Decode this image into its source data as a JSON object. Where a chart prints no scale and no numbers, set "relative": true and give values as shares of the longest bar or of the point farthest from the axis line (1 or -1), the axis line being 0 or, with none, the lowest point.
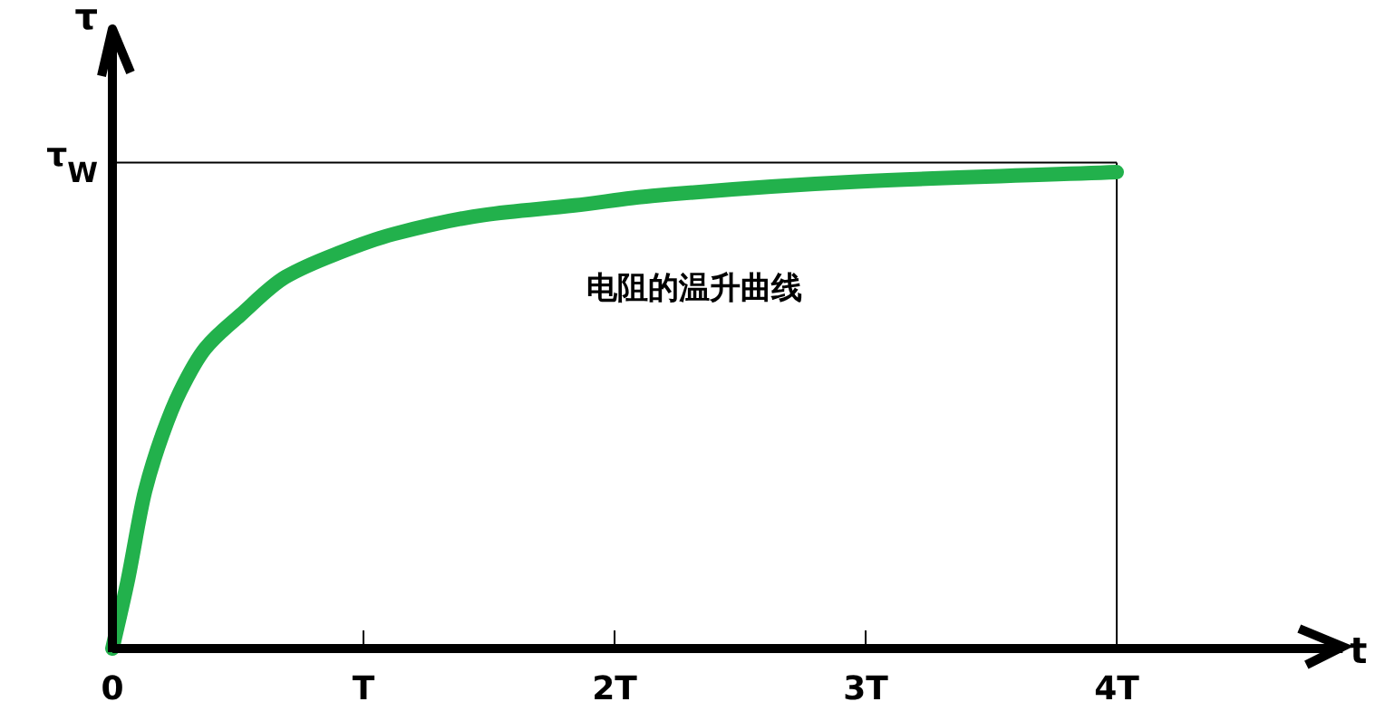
{
  "chart_data": {
    "type": "line",
    "xlabel": "t",
    "ylabel": "τ",
    "relative": true,
    "x": [
      0,
      0.06,
      0.13,
      0.2,
      0.27,
      0.37,
      0.51,
      0.69,
      0.9,
      1.12,
      1.48,
      1.84,
      2.15,
      2.97,
      4.0
    ],
    "series": [
      {
        "color": "#22b14c",
        "values": [
          0,
          0.14,
          0.33,
          0.45,
          0.54,
          0.63,
          0.7,
          0.78,
          0.83,
          0.87,
          0.91,
          0.93,
          0.95,
          0.98,
          1
        ]
      }
    ],
    "xlim": [
      0,
      4.9
    ],
    "xticks": [
      {
        "value": 0,
        "label": "0"
      },
      {
        "value": 1,
        "label": "T"
      },
      {
        "value": 2,
        "label": "2T"
      },
      {
        "value": 3,
        "label": "3T"
      },
      {
        "value": 4,
        "label": "4T"
      }
    ],
    "ref_lines": [
      {
        "axis": "y",
        "value": 1.02,
        "label": "τ$_{W}$",
        "color": "#000000"
      },
      {
        "axis": "x",
        "value": 4,
        "color": "#000000"
      }
    ],
    "annotations": [
      "电阻的温升曲线"
    ],
    "marker": "none",
    "line_style": "solid"
  }
}
